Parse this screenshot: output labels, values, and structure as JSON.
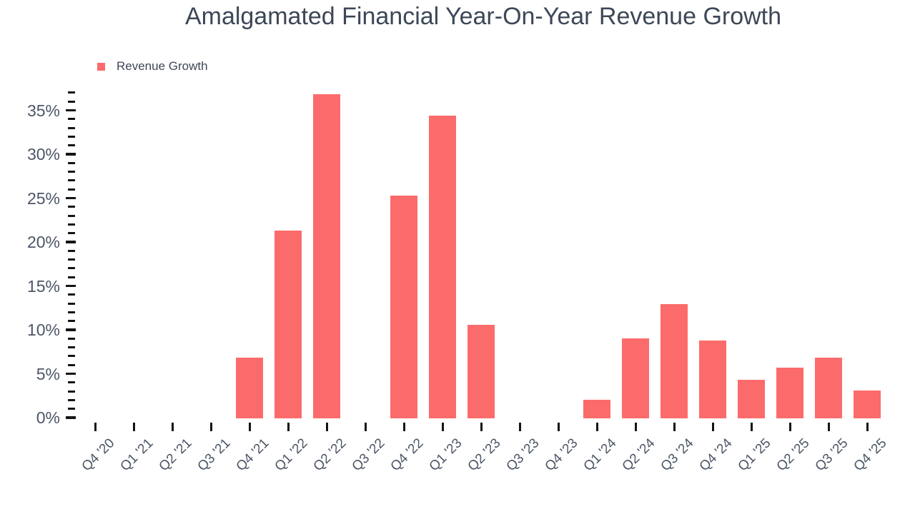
{
  "title": "Amalgamated Financial Year-On-Year Revenue Growth",
  "legend": {
    "label": "Revenue Growth"
  },
  "colors": {
    "bar": "#FC6B6B",
    "title_text": "#3D4757",
    "axis_label_text": "#4C5666",
    "tick_mark": "#121518",
    "background": "#FFFFFF"
  },
  "chart_data": {
    "type": "bar",
    "title": "Amalgamated Financial Year-On-Year Revenue Growth",
    "xlabel": "",
    "ylabel": "",
    "series_name": "Revenue Growth",
    "unit": "%",
    "categories": [
      "Q4 '20",
      "Q1 '21",
      "Q2 '21",
      "Q3 '21",
      "Q4 '21",
      "Q1 '22",
      "Q2 '22",
      "Q3 '22",
      "Q4 '22",
      "Q1 '23",
      "Q2 '23",
      "Q3 '23",
      "Q4 '23",
      "Q1 '24",
      "Q2 '24",
      "Q3 '24",
      "Q4 '24",
      "Q1 '25",
      "Q2 '25",
      "Q3 '25",
      "Q4 '25"
    ],
    "values": [
      null,
      null,
      null,
      null,
      6.8,
      21.3,
      36.8,
      null,
      25.3,
      34.4,
      10.6,
      null,
      null,
      2.0,
      9.0,
      12.9,
      8.8,
      4.3,
      5.7,
      6.8,
      3.1
    ],
    "ylim": [
      0,
      37
    ],
    "y_major_ticks": [
      0,
      5,
      10,
      15,
      20,
      25,
      30,
      35
    ],
    "y_tick_labels": [
      "0%",
      "5%",
      "10%",
      "15%",
      "20%",
      "25%",
      "30%",
      "35%"
    ],
    "y_minor_step": 1,
    "grid": false,
    "axis_lines": false,
    "legend_position": "top-left",
    "bar_color": "#FC6B6B"
  }
}
